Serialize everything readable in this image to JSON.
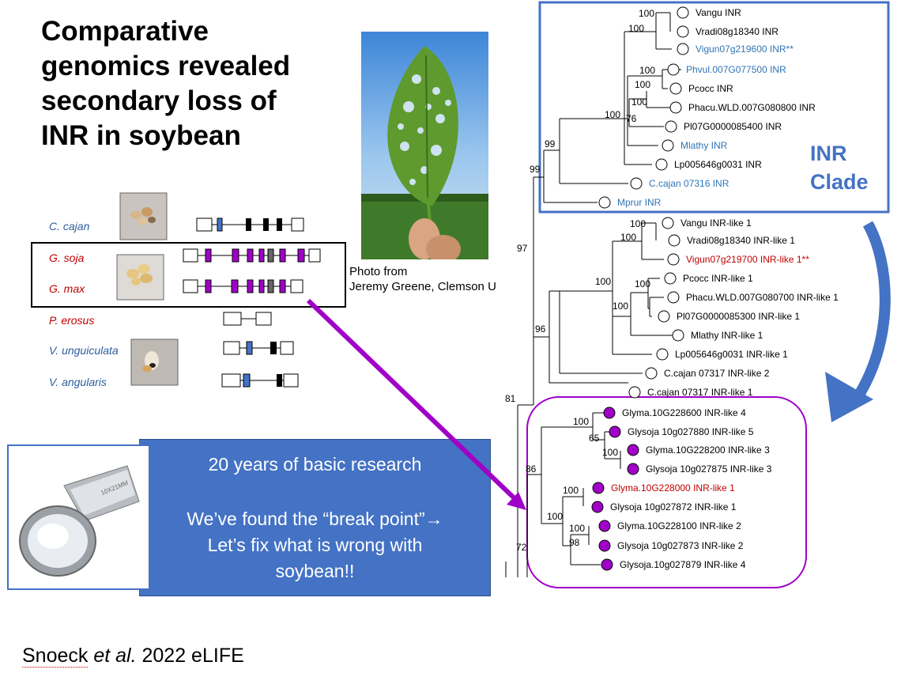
{
  "title": [
    "Comparative",
    "genomics revealed",
    "secondary loss of",
    "INR in soybean"
  ],
  "photo_credit": [
    "Photo from",
    "Jeremy Greene, Clemson U"
  ],
  "species": [
    {
      "name": "C. cajan",
      "color": "#2e5e9e"
    },
    {
      "name": "G. soja",
      "color": "#c00000"
    },
    {
      "name": "G. max",
      "color": "#c00000"
    },
    {
      "name": "P. erosus",
      "color": "#c00000"
    },
    {
      "name": "V. unguiculata",
      "color": "#2e5e9e"
    },
    {
      "name": "V. angularis",
      "color": "#2e5e9e"
    }
  ],
  "infobox": {
    "line1": "20 years of basic research",
    "line2": "We’ve found the “break point”→",
    "line3": "Let’s fix what is wrong with",
    "line4": "soybean!!"
  },
  "citation": {
    "author": "Snoeck",
    "etal": "et al.",
    "rest": "2022 eLIFE"
  },
  "clade_label": [
    "INR",
    "Clade"
  ],
  "colors": {
    "accent_blue": "#4472c4",
    "purple": "#a000c8",
    "red": "#c00000",
    "leaf_label_blue": "#2e75b6"
  },
  "tree": {
    "support_values": [
      "100",
      "100",
      "100",
      "100",
      "100",
      "100",
      "76",
      "99",
      "99",
      "97",
      "100",
      "100",
      "100",
      "100",
      "100",
      "96",
      "81",
      "100",
      "65",
      "100",
      "86",
      "100",
      "100",
      "100",
      "98",
      "72"
    ],
    "leaves": [
      {
        "name": "Vangu INR",
        "color": "#000000",
        "marker": "open"
      },
      {
        "name": "Vradi08g18340 INR",
        "color": "#000000",
        "marker": "open"
      },
      {
        "name": "Vigun07g219600 INR**",
        "color": "#2e75b6",
        "marker": "open"
      },
      {
        "name": "Phvul.007G077500 INR",
        "color": "#2e75b6",
        "marker": "open"
      },
      {
        "name": "Pcocc INR",
        "color": "#000000",
        "marker": "open"
      },
      {
        "name": "Phacu.WLD.007G080800 INR",
        "color": "#000000",
        "marker": "open"
      },
      {
        "name": "Pl07G0000085400 INR",
        "color": "#000000",
        "marker": "open"
      },
      {
        "name": "Mlathy INR",
        "color": "#2e75b6",
        "marker": "open"
      },
      {
        "name": "Lp005646g0031 INR",
        "color": "#000000",
        "marker": "open"
      },
      {
        "name": "C.cajan 07316 INR",
        "color": "#2e75b6",
        "marker": "open"
      },
      {
        "name": "Mprur INR",
        "color": "#2e75b6",
        "marker": "open"
      },
      {
        "name": "Vangu INR-like 1",
        "color": "#000000",
        "marker": "open"
      },
      {
        "name": "Vradi08g18340 INR-like 1",
        "color": "#000000",
        "marker": "open"
      },
      {
        "name": "Vigun07g219700 INR-like 1**",
        "color": "#c00000",
        "marker": "open"
      },
      {
        "name": "Pcocc INR-like 1",
        "color": "#000000",
        "marker": "open"
      },
      {
        "name": "Phacu.WLD.007G080700 INR-like 1",
        "color": "#000000",
        "marker": "open"
      },
      {
        "name": "Pl07G0000085300 INR-like 1",
        "color": "#000000",
        "marker": "open"
      },
      {
        "name": "Mlathy INR-like 1",
        "color": "#000000",
        "marker": "open"
      },
      {
        "name": "Lp005646g0031 INR-like 1",
        "color": "#000000",
        "marker": "open"
      },
      {
        "name": "C.cajan 07317 INR-like 2",
        "color": "#000000",
        "marker": "open"
      },
      {
        "name": "C.cajan 07317 INR-like 1",
        "color": "#000000",
        "marker": "open"
      },
      {
        "name": "Glyma.10G228600 INR-like 4",
        "color": "#000000",
        "marker": "filled"
      },
      {
        "name": "Glysoja 10g027880 INR-like 5",
        "color": "#000000",
        "marker": "filled"
      },
      {
        "name": "Glyma.10G228200 INR-like 3",
        "color": "#000000",
        "marker": "filled"
      },
      {
        "name": "Glysoja 10g027875 INR-like 3",
        "color": "#000000",
        "marker": "filled"
      },
      {
        "name": "Glyma.10G228000 INR-like 1",
        "color": "#c00000",
        "marker": "filled"
      },
      {
        "name": "Glysoja 10g027872 INR-like 1",
        "color": "#000000",
        "marker": "filled"
      },
      {
        "name": "Glyma.10G228100 INR-like 2",
        "color": "#000000",
        "marker": "filled"
      },
      {
        "name": "Glysoja 10g027873 INR-like 2",
        "color": "#000000",
        "marker": "filled"
      },
      {
        "name": "Glysoja.10g027879 INR-like 4",
        "color": "#000000",
        "marker": "filled"
      }
    ]
  },
  "loupe_text": "10X21MM"
}
